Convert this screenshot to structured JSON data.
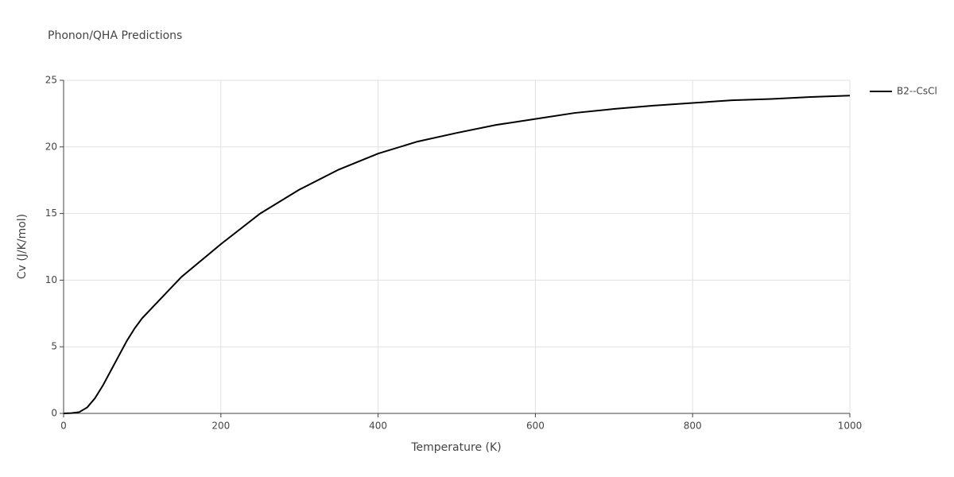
{
  "chart_data": {
    "type": "line",
    "title": "Phonon/QHA Predictions",
    "xlabel": "Temperature (K)",
    "ylabel": "Cv (J/K/mol)",
    "x": [
      0,
      10,
      20,
      30,
      40,
      50,
      60,
      70,
      80,
      90,
      100,
      150,
      200,
      250,
      300,
      350,
      400,
      450,
      500,
      550,
      600,
      650,
      700,
      750,
      800,
      850,
      900,
      950,
      1000
    ],
    "series": [
      {
        "name": "B2--CsCl",
        "color": "#000000",
        "values": [
          0,
          0.02,
          0.1,
          0.45,
          1.15,
          2.1,
          3.2,
          4.3,
          5.4,
          6.35,
          7.15,
          10.25,
          12.7,
          15.0,
          16.8,
          18.3,
          19.5,
          20.4,
          21.05,
          21.65,
          22.1,
          22.55,
          22.85,
          23.1,
          23.3,
          23.5,
          23.6,
          23.75,
          23.85
        ]
      }
    ],
    "xlim": [
      0,
      1000
    ],
    "xticks": [
      0,
      200,
      400,
      600,
      800,
      1000
    ],
    "ylim": [
      0,
      25
    ],
    "yticks": [
      0,
      5,
      10,
      15,
      20,
      25
    ],
    "grid": true,
    "legend": "right"
  }
}
